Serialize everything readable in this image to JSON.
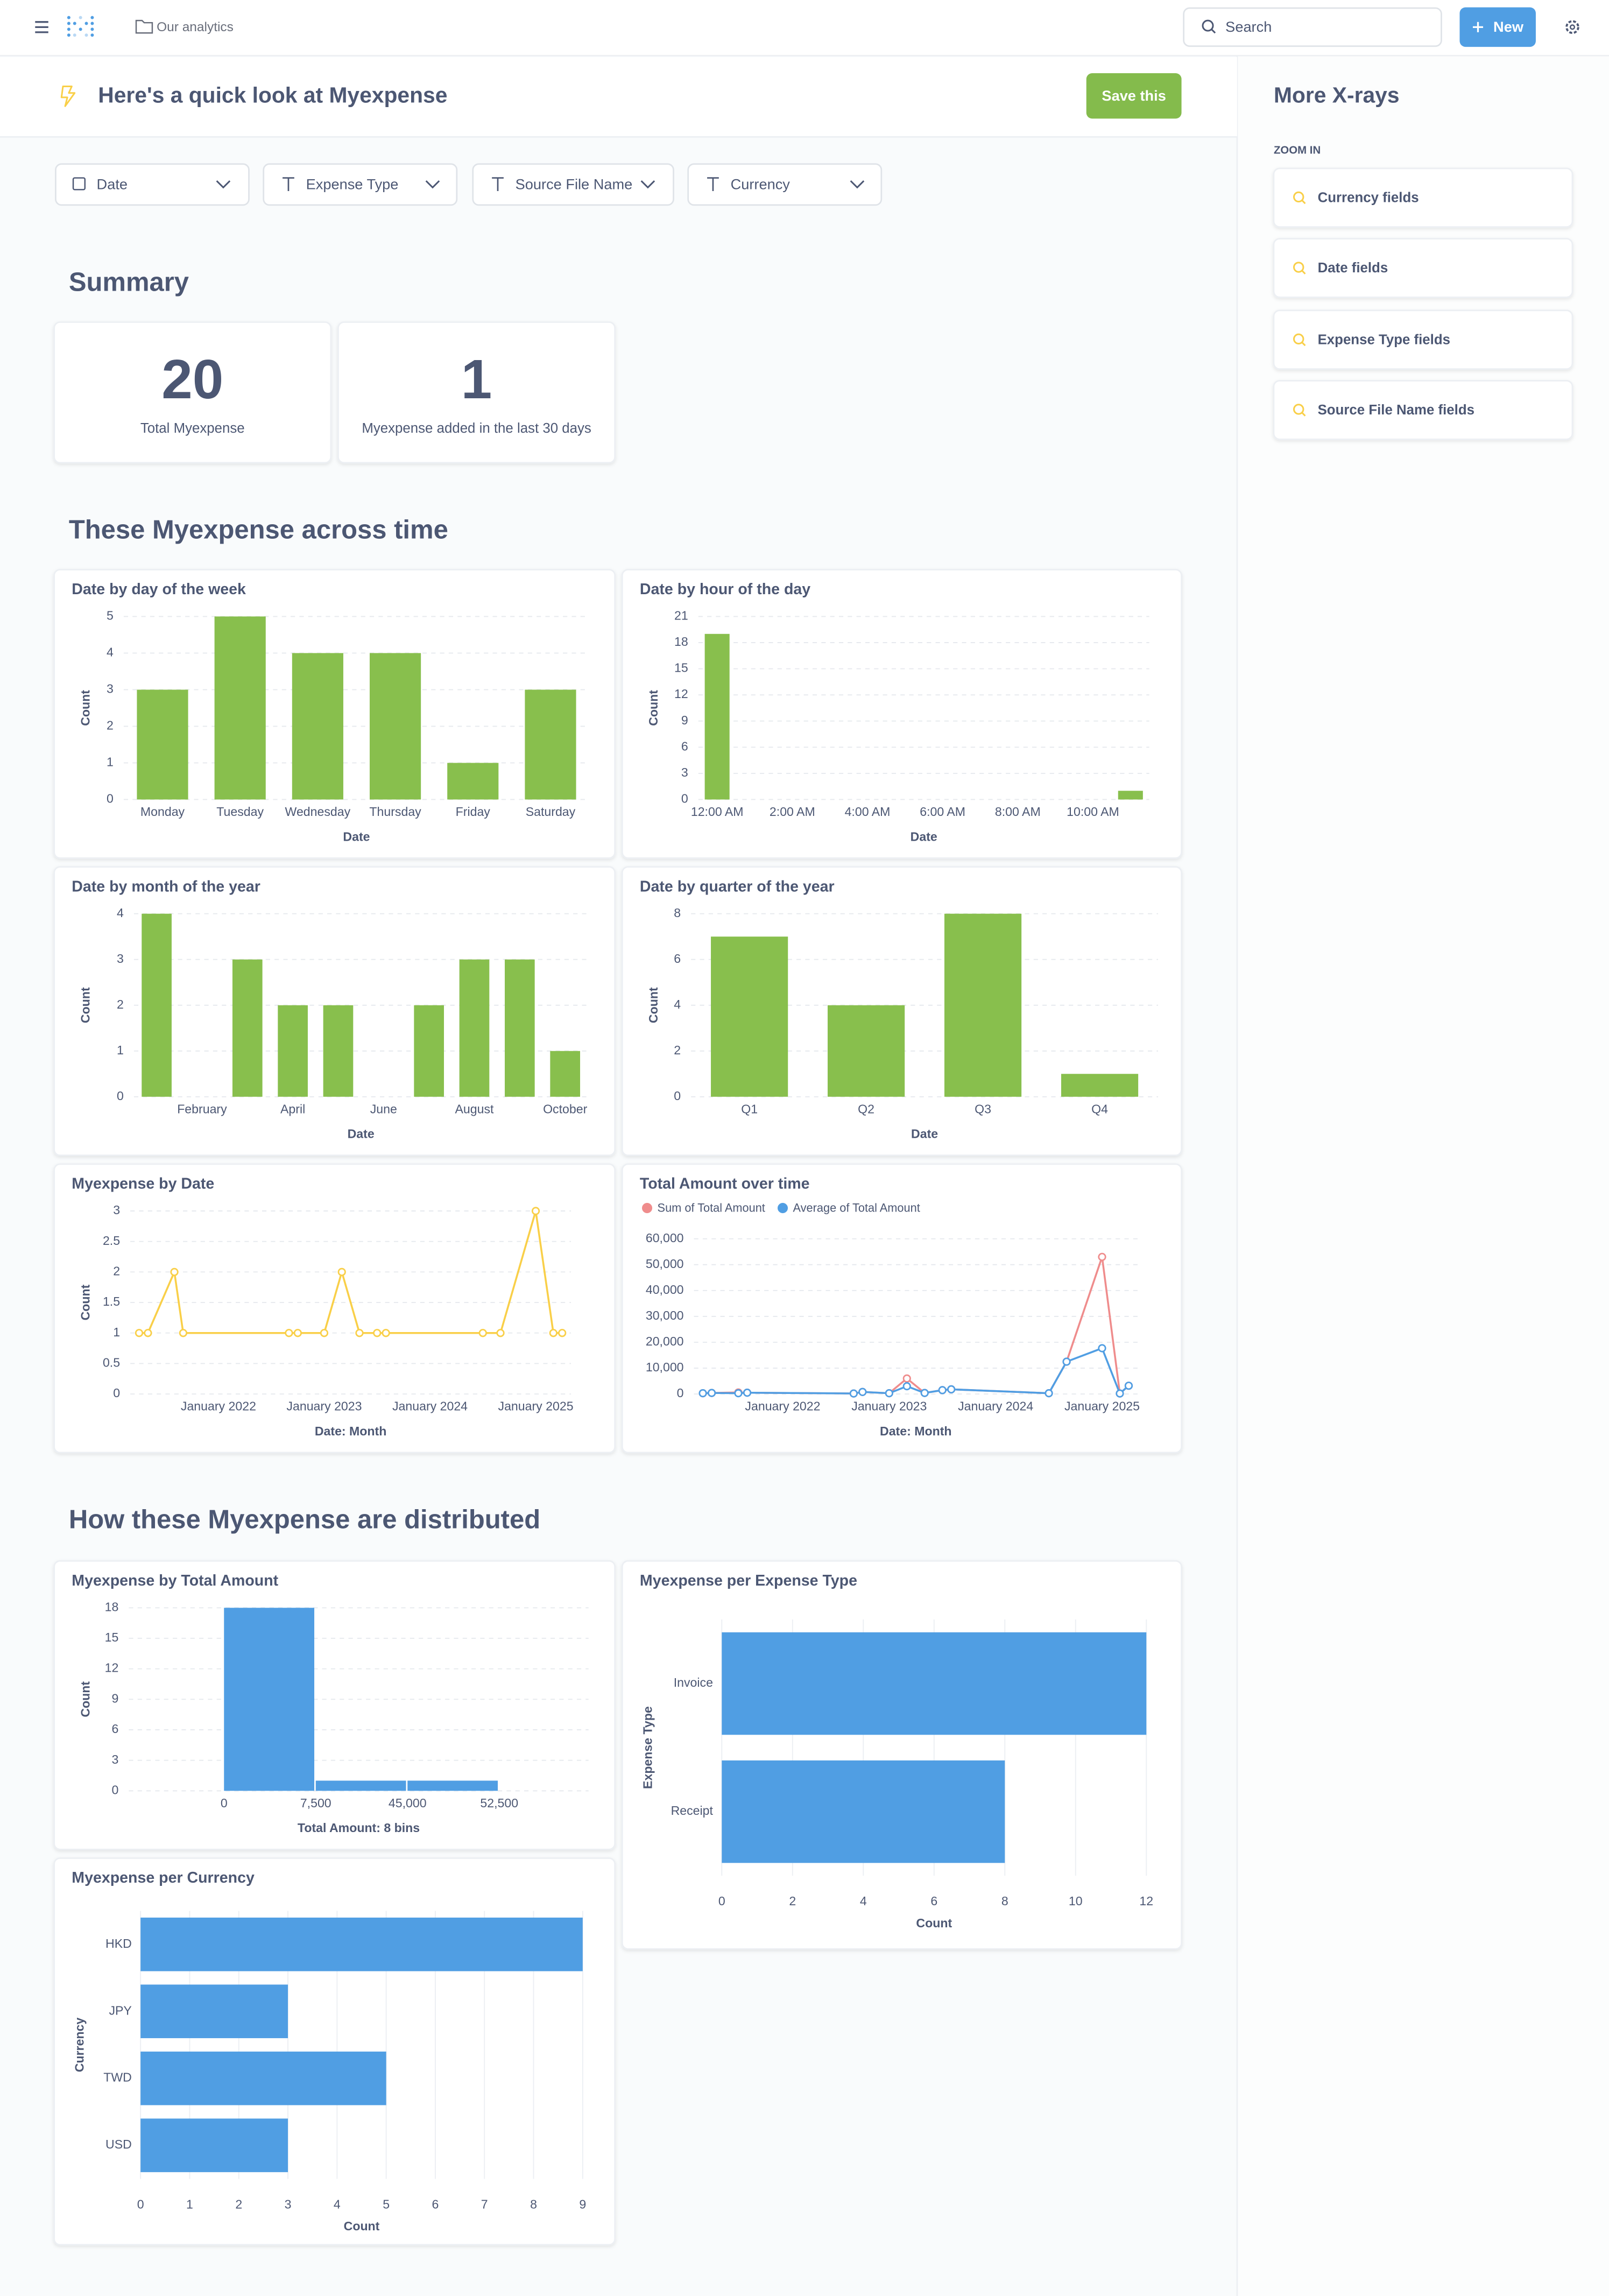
{
  "nav": {
    "breadcrumb": "Our analytics",
    "search": "Search",
    "new": "New"
  },
  "header": {
    "title": "Here's a quick look at Myexpense",
    "save": "Save this"
  },
  "filters": [
    "Date",
    "Expense Type",
    "Source File Name",
    "Currency"
  ],
  "sections": [
    "Summary",
    "These Myexpense across time",
    "How these Myexpense are distributed"
  ],
  "scalars": [
    {
      "value": 20,
      "label": "Total Myexpense"
    },
    {
      "value": 1,
      "label": "Myexpense added in the last 30 days"
    }
  ],
  "sidebar": {
    "title": "More X-rays",
    "subtitle": "ZOOM IN",
    "items": [
      "Currency fields",
      "Date fields",
      "Expense Type fields",
      "Source File Name fields"
    ]
  },
  "charts": [
    {
      "type": "bar",
      "title": "Date by day of the week",
      "categories": [
        "Monday",
        "Tuesday",
        "Wednesday",
        "Thursday",
        "Friday",
        "Saturday"
      ],
      "values": [
        3,
        5,
        4,
        4,
        1,
        3
      ],
      "color": "#88bf4d",
      "ylim": [
        0,
        5
      ],
      "yticks": [
        0,
        1,
        2,
        3,
        4,
        5
      ],
      "grid": true,
      "x_label": "Date",
      "y_label": "Count"
    },
    {
      "type": "bar",
      "title": "Date by hour of the day",
      "categories": [
        "12:00 AM",
        null,
        "2:00 AM",
        null,
        "4:00 AM",
        null,
        "6:00 AM",
        null,
        "8:00 AM",
        null,
        "10:00 AM",
        null
      ],
      "values": [
        19,
        0,
        0,
        0,
        0,
        0,
        0,
        0,
        0,
        0,
        0,
        1
      ],
      "color": "#88bf4d",
      "ylim": [
        0,
        21
      ],
      "yticks": [
        0,
        3,
        6,
        9,
        12,
        15,
        18,
        21
      ],
      "grid": true,
      "x_label": "Date",
      "y_label": "Count"
    },
    {
      "type": "bar",
      "title": "Date by month of the year",
      "categories": [
        null,
        "February",
        null,
        "April",
        null,
        "June",
        null,
        "August",
        null,
        "October"
      ],
      "values": [
        4,
        0,
        3,
        2,
        2,
        0,
        2,
        3,
        3,
        1
      ],
      "color": "#88bf4d",
      "ylim": [
        0,
        4
      ],
      "yticks": [
        0,
        1,
        2,
        3,
        4
      ],
      "grid": true,
      "x_label": "Date",
      "y_label": "Count"
    },
    {
      "type": "bar",
      "title": "Date by quarter of the year",
      "categories": [
        "Q1",
        "Q2",
        "Q3",
        "Q4"
      ],
      "values": [
        7,
        4,
        8,
        1
      ],
      "color": "#88bf4d",
      "ylim": [
        0,
        8
      ],
      "yticks": [
        0,
        2,
        4,
        6,
        8
      ],
      "grid": true,
      "x_label": "Date",
      "y_label": "Count"
    },
    {
      "type": "line",
      "title": "Myexpense by Date",
      "x": [
        "2021-04",
        "2021-05",
        "2021-08",
        "2021-09",
        "2022-09",
        "2022-10",
        "2023-01",
        "2023-03",
        "2023-05",
        "2023-07",
        "2023-08",
        "2024-07",
        "2024-09",
        "2025-01",
        "2025-03",
        "2025-04"
      ],
      "values": [
        1,
        1,
        2,
        1,
        1,
        1,
        1,
        2,
        1,
        1,
        1,
        1,
        1,
        3,
        1,
        1
      ],
      "color": "#f9cf48",
      "xlim": [
        "2021-03",
        "2025-05"
      ],
      "xticks": [
        {
          "value": "2022-01",
          "label": "January 2022"
        },
        {
          "value": "2023-01",
          "label": "January 2023"
        },
        {
          "value": "2024-01",
          "label": "January 2024"
        },
        {
          "value": "2025-01",
          "label": "January 2025"
        }
      ],
      "ylim": [
        0,
        3
      ],
      "yticks": [
        0,
        0.5,
        1,
        1.5,
        2,
        2.5,
        3
      ],
      "grid": true,
      "x_label": "Date: Month",
      "y_label": "Count"
    },
    {
      "type": "line",
      "title": "Total Amount over time",
      "x": [
        "2021-04",
        "2021-05",
        "2021-08",
        "2021-09",
        "2022-09",
        "2022-10",
        "2023-01",
        "2023-03",
        "2023-05",
        "2023-07",
        "2023-08",
        "2024-07",
        "2024-09",
        "2025-01",
        "2025-03",
        "2025-04"
      ],
      "series": [
        {
          "name": "Sum of Total Amount",
          "color": "#ef8c8c",
          "values": [
            300,
            400,
            600,
            500,
            200,
            800,
            300,
            6000,
            400,
            1500,
            1800,
            300,
            12500,
            53000,
            200,
            3200
          ]
        },
        {
          "name": "Average of Total Amount",
          "color": "#509ee3",
          "values": [
            300,
            400,
            300,
            500,
            200,
            800,
            300,
            3000,
            400,
            1500,
            1800,
            300,
            12500,
            17700,
            200,
            3200
          ]
        }
      ],
      "legend": "top-left",
      "xlim": [
        "2021-03",
        "2025-05"
      ],
      "xticks": [
        {
          "value": "2022-01",
          "label": "January 2022"
        },
        {
          "value": "2023-01",
          "label": "January 2023"
        },
        {
          "value": "2024-01",
          "label": "January 2024"
        },
        {
          "value": "2025-01",
          "label": "January 2025"
        }
      ],
      "ylim": [
        0,
        60000
      ],
      "yticks": [
        0,
        {
          "value": 10000,
          "label": "10,000"
        },
        {
          "value": 20000,
          "label": "20,000"
        },
        {
          "value": 30000,
          "label": "30,000"
        },
        {
          "value": 40000,
          "label": "40,000"
        },
        {
          "value": 50000,
          "label": "50,000"
        },
        {
          "value": 60000,
          "label": "60,000"
        }
      ],
      "grid": true,
      "x_label": "Date: Month"
    },
    {
      "type": "histogram",
      "title": "Myexpense by Total Amount",
      "bins": [
        0,
        {
          "value": 7500,
          "label": "7,500"
        },
        {
          "value": 45000,
          "label": "45,000"
        },
        {
          "value": 52500,
          "label": "52,500"
        }
      ],
      "values": [
        18,
        1,
        1
      ],
      "color": "#509ee3",
      "ylim": [
        0,
        18
      ],
      "yticks": [
        0,
        3,
        6,
        9,
        12,
        15,
        18
      ],
      "grid": true,
      "x_label": "Total Amount: 8 bins",
      "y_label": "Count"
    },
    {
      "type": "hbar",
      "title": "Myexpense per Expense Type",
      "categories": [
        "Invoice",
        "Receipt"
      ],
      "values": [
        12,
        8
      ],
      "color": "#509ee3",
      "xlim": [
        0,
        12
      ],
      "xticks": [
        0,
        2,
        4,
        6,
        8,
        10,
        12
      ],
      "grid": true,
      "x_label": "Count",
      "y_label": "Expense Type"
    },
    {
      "type": "hbar",
      "title": "Myexpense per Currency",
      "categories": [
        "HKD",
        "JPY",
        "TWD",
        "USD"
      ],
      "values": [
        9,
        3,
        5,
        3
      ],
      "color": "#509ee3",
      "xlim": [
        0,
        9
      ],
      "xticks": [
        0,
        1,
        2,
        3,
        4,
        5,
        6,
        7,
        8,
        9
      ],
      "grid": true,
      "x_label": "Count",
      "y_label": "Currency"
    }
  ]
}
